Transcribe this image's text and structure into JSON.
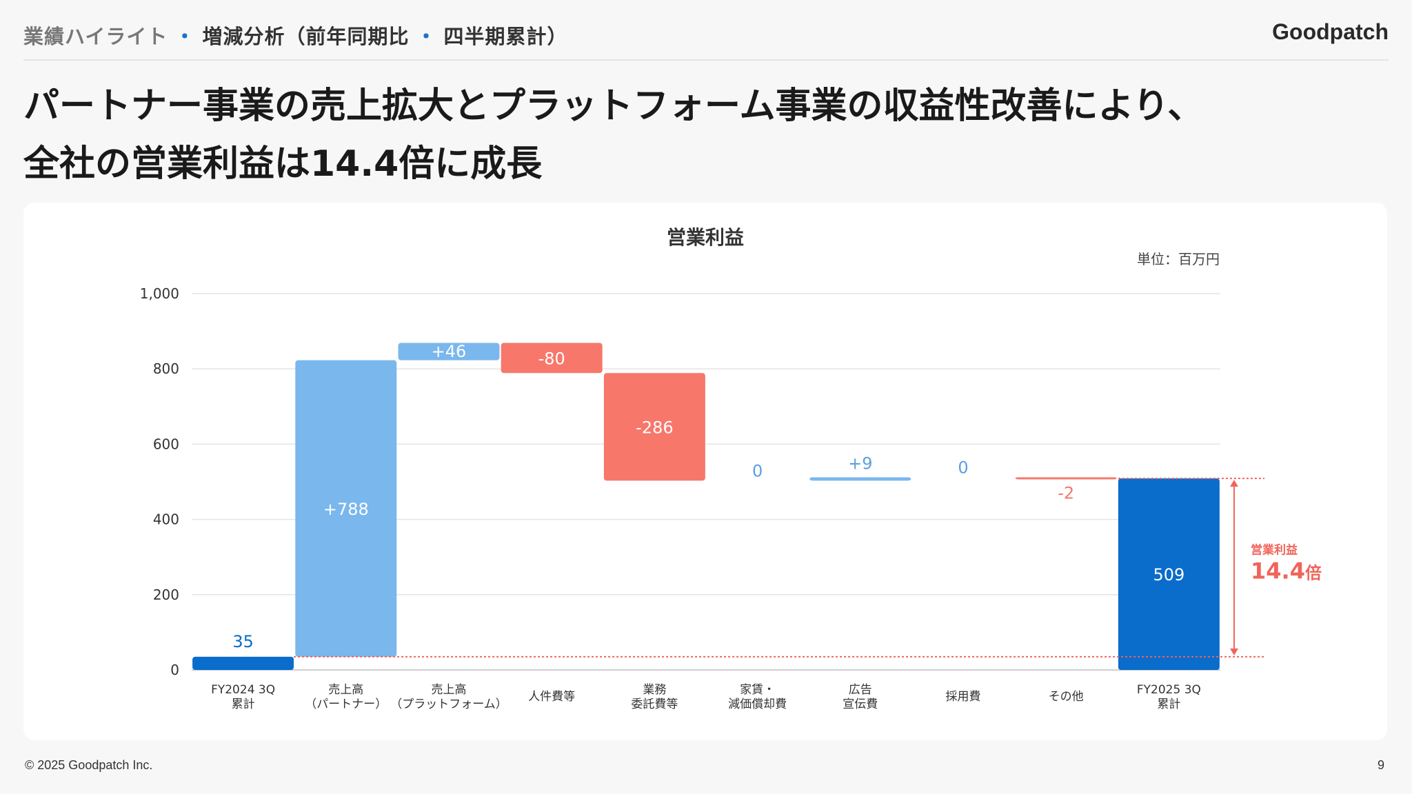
{
  "header": {
    "breadcrumb_section": "業績ハイライト",
    "breadcrumb_separator": "・",
    "breadcrumb_page_a": "増減分析（前年同期比",
    "breadcrumb_page_b": "四半期累計）",
    "logo_text": "Goodpatch"
  },
  "headline": {
    "line1": "パートナー事業の売上拡大とプラットフォーム事業の収益性改善により、",
    "line2": "全社の営業利益は14.4倍に成長"
  },
  "footer": {
    "copyright": "© 2025 Goodpatch Inc.",
    "page_number": "9"
  },
  "colors": {
    "base": "#0a6ccb",
    "increase": "#7ab7ec",
    "decrease": "#f7776b",
    "accent": "#f0645a"
  },
  "chart_data": {
    "type": "bar",
    "subtype": "waterfall",
    "title": "営業利益",
    "unit": "単位：百万円",
    "ylim": [
      0,
      1000
    ],
    "yticks": [
      "0",
      "200",
      "400",
      "600",
      "800",
      "1,000"
    ],
    "grid": true,
    "steps": [
      {
        "name": "FY2024 3Q 累計",
        "label_lines": [
          "FY2024 3Q",
          "累計"
        ],
        "kind": "total",
        "value": 35,
        "value_label": "35"
      },
      {
        "name": "売上高（パートナー）",
        "label_lines": [
          "売上高",
          "（パートナー）"
        ],
        "kind": "delta",
        "value": 788,
        "value_label": "+788"
      },
      {
        "name": "売上高（プラットフォーム）",
        "label_lines": [
          "売上高",
          "（プラットフォーム）"
        ],
        "kind": "delta",
        "value": 46,
        "value_label": "+46"
      },
      {
        "name": "人件費等",
        "label_lines": [
          "人件費等"
        ],
        "kind": "delta",
        "value": -80,
        "value_label": "-80"
      },
      {
        "name": "業務委託費等",
        "label_lines": [
          "業務",
          "委託費等"
        ],
        "kind": "delta",
        "value": -286,
        "value_label": "-286"
      },
      {
        "name": "家賃・減価償却費",
        "label_lines": [
          "家賃・",
          "減価償却費"
        ],
        "kind": "delta",
        "value": 0,
        "value_label": "0"
      },
      {
        "name": "広告宣伝費",
        "label_lines": [
          "広告",
          "宣伝費"
        ],
        "kind": "delta",
        "value": 9,
        "value_label": "+9"
      },
      {
        "name": "採用費",
        "label_lines": [
          "採用費"
        ],
        "kind": "delta",
        "value": 0,
        "value_label": "0"
      },
      {
        "name": "その他",
        "label_lines": [
          "その他"
        ],
        "kind": "delta",
        "value": -2,
        "value_label": "-2"
      },
      {
        "name": "FY2025 3Q 累計",
        "label_lines": [
          "FY2025 3Q",
          "累計"
        ],
        "kind": "total",
        "value": 509,
        "value_label": "509"
      }
    ],
    "annotation": {
      "label": "営業利益",
      "value_number": "14.4",
      "value_unit": "倍"
    }
  }
}
